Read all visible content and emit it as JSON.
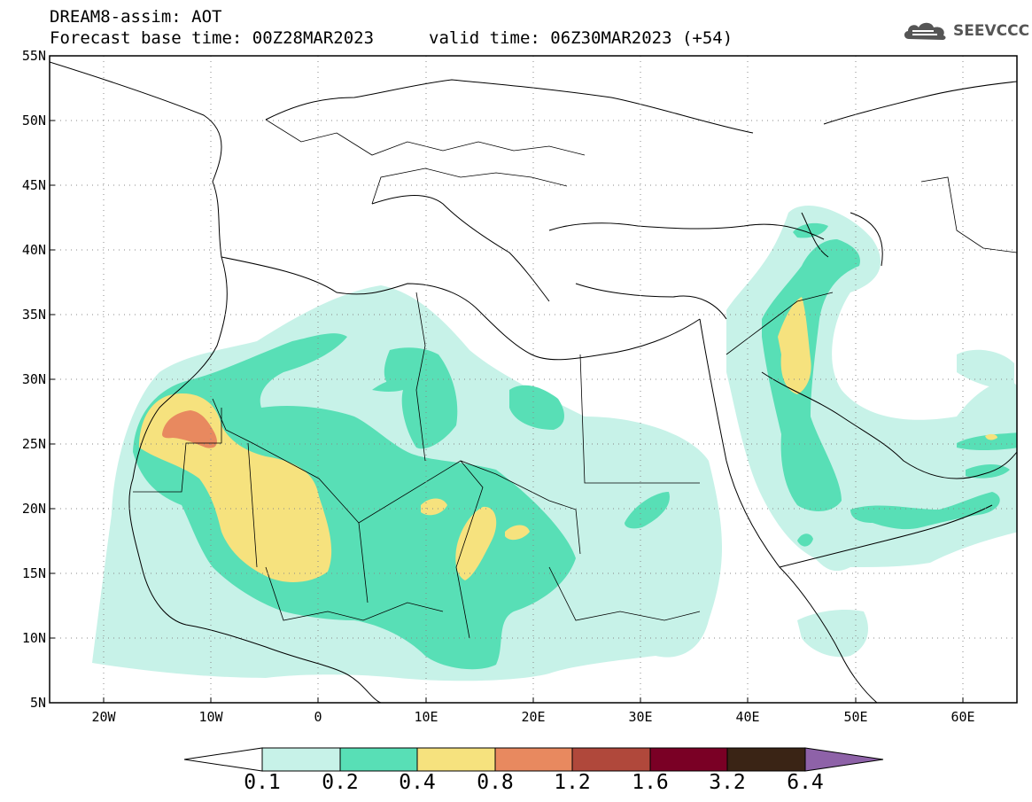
{
  "header": {
    "title": "DREAM8-assim: AOT",
    "base_time": "Forecast base time: 00Z28MAR2023",
    "valid_time": "valid time: 06Z30MAR2023 (+54)"
  },
  "logo": {
    "text": "SEEVCCC",
    "icon": "cloud-icon"
  },
  "axes": {
    "lat_labels": [
      "55N",
      "50N",
      "45N",
      "40N",
      "35N",
      "30N",
      "25N",
      "20N",
      "15N",
      "10N",
      "5N"
    ],
    "lon_labels": [
      "20W",
      "10W",
      "0",
      "10E",
      "20E",
      "30E",
      "40E",
      "50E",
      "60E"
    ],
    "lat_range": [
      5,
      55
    ],
    "lon_range": [
      -25,
      65
    ]
  },
  "colorbar": {
    "levels": [
      "0.1",
      "0.2",
      "0.4",
      "0.8",
      "1.2",
      "1.6",
      "3.2",
      "6.4"
    ],
    "colors": [
      "#ffffff",
      "#c7f2e8",
      "#58dfb6",
      "#f6e27e",
      "#e8895f",
      "#b0483b",
      "#7a0025",
      "#3a2415",
      "#8e62a8"
    ]
  }
}
